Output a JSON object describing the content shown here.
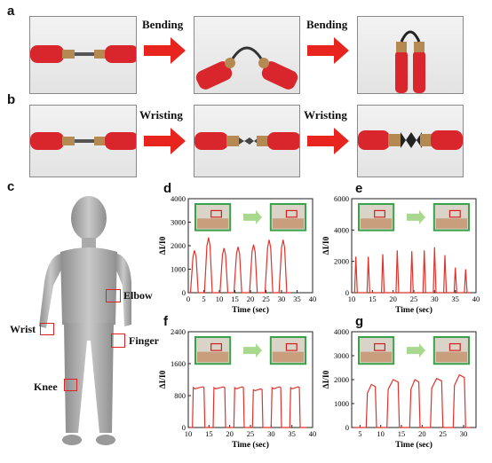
{
  "panels": {
    "a": {
      "label": "a",
      "step1": "Bending",
      "step2": "Bending"
    },
    "b": {
      "label": "b",
      "step1": "Wristing",
      "step2": "Wristing"
    },
    "c": {
      "label": "c",
      "joints": {
        "elbow": "Elbow",
        "wrist": "Wrist",
        "finger": "Finger",
        "knee": "Knee"
      }
    }
  },
  "colors": {
    "clip": "#d8262c",
    "trace": "#e0332b",
    "frame": "#3aa24a",
    "highlight": "#d62020"
  },
  "chart_data": [
    {
      "id": "d",
      "type": "line",
      "xlabel": "Time (sec)",
      "ylabel": "ΔI/I0",
      "xlim": [
        0,
        40
      ],
      "ylim": [
        0,
        4000
      ],
      "xticks": [
        0,
        5,
        10,
        15,
        20,
        25,
        30,
        35,
        40
      ],
      "yticks": [
        0,
        1000,
        2000,
        3000,
        4000
      ],
      "peaks": [
        {
          "t": 2,
          "v": 1800
        },
        {
          "t": 6.5,
          "v": 2350
        },
        {
          "t": 11.5,
          "v": 1900
        },
        {
          "t": 16,
          "v": 1950
        },
        {
          "t": 21,
          "v": 2050
        },
        {
          "t": 26,
          "v": 2250
        },
        {
          "t": 30.5,
          "v": 2250
        }
      ],
      "shape": "rounded",
      "end": 33
    },
    {
      "id": "e",
      "type": "line",
      "xlabel": "Time (sec)",
      "ylabel": "ΔI/I0",
      "xlim": [
        10,
        40
      ],
      "ylim": [
        0,
        6000
      ],
      "xticks": [
        10,
        15,
        20,
        25,
        30,
        35,
        40
      ],
      "yticks": [
        0,
        2000,
        4000,
        6000
      ],
      "peaks": [
        {
          "t": 11,
          "v": 2300
        },
        {
          "t": 14,
          "v": 2300
        },
        {
          "t": 17.5,
          "v": 2450
        },
        {
          "t": 21,
          "v": 2700
        },
        {
          "t": 24.5,
          "v": 2650
        },
        {
          "t": 27.5,
          "v": 2700
        },
        {
          "t": 30,
          "v": 2900
        },
        {
          "t": 32.5,
          "v": 2400
        },
        {
          "t": 35,
          "v": 1600
        },
        {
          "t": 37.5,
          "v": 1500
        }
      ],
      "shape": "spike",
      "end": 38.5
    },
    {
      "id": "f",
      "type": "line",
      "xlabel": "Time (sec)",
      "ylabel": "ΔI/I0",
      "xlim": [
        10,
        40
      ],
      "ylim": [
        0,
        2400
      ],
      "xticks": [
        10,
        15,
        20,
        25,
        30,
        35,
        40
      ],
      "yticks": [
        0,
        800,
        1600,
        2400
      ],
      "pulses": [
        {
          "t0": 11,
          "t1": 14,
          "v": 1000
        },
        {
          "t0": 16,
          "t1": 19,
          "v": 1000
        },
        {
          "t0": 21,
          "t1": 23.5,
          "v": 1000
        },
        {
          "t0": 25.5,
          "t1": 28,
          "v": 950
        },
        {
          "t0": 30,
          "t1": 32.5,
          "v": 1000
        },
        {
          "t0": 34.5,
          "t1": 37,
          "v": 1000
        }
      ],
      "shape": "square",
      "end": 38.5
    },
    {
      "id": "g",
      "type": "line",
      "xlabel": "Time (sec)",
      "ylabel": "ΔI/I0",
      "xlim": [
        3,
        33
      ],
      "ylim": [
        0,
        4000
      ],
      "xticks": [
        5,
        10,
        15,
        20,
        25,
        30
      ],
      "yticks": [
        0,
        1000,
        2000,
        3000,
        4000
      ],
      "pulses": [
        {
          "t0": 6.5,
          "t1": 9,
          "v": 1800
        },
        {
          "t0": 11.5,
          "t1": 14.5,
          "v": 2000
        },
        {
          "t0": 17,
          "t1": 19.5,
          "v": 2000
        },
        {
          "t0": 22,
          "t1": 25,
          "v": 2050
        },
        {
          "t0": 27.5,
          "t1": 30.5,
          "v": 2200
        }
      ],
      "shape": "dome",
      "end": 31.5
    }
  ]
}
